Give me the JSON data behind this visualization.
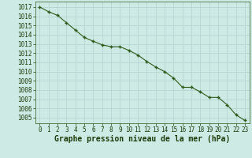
{
  "x": [
    0,
    1,
    2,
    3,
    4,
    5,
    6,
    7,
    8,
    9,
    10,
    11,
    12,
    13,
    14,
    15,
    16,
    17,
    18,
    19,
    20,
    21,
    22,
    23
  ],
  "y": [
    1017.0,
    1016.5,
    1016.1,
    1015.3,
    1014.5,
    1013.7,
    1013.3,
    1012.9,
    1012.7,
    1012.7,
    1012.3,
    1011.8,
    1011.1,
    1010.5,
    1010.0,
    1009.3,
    1008.3,
    1008.3,
    1007.8,
    1007.2,
    1007.2,
    1006.4,
    1005.3,
    1004.7
  ],
  "line_color": "#2d5a1b",
  "marker": "+",
  "bg_color": "#ceeae4",
  "grid_color": "#b0d4ce",
  "title": "Graphe pression niveau de la mer (hPa)",
  "ylabel_ticks": [
    1005,
    1006,
    1007,
    1008,
    1009,
    1010,
    1011,
    1012,
    1013,
    1014,
    1015,
    1016,
    1017
  ],
  "ylim": [
    1004.4,
    1017.6
  ],
  "xlim": [
    -0.5,
    23.5
  ],
  "xticks": [
    0,
    1,
    2,
    3,
    4,
    5,
    6,
    7,
    8,
    9,
    10,
    11,
    12,
    13,
    14,
    15,
    16,
    17,
    18,
    19,
    20,
    21,
    22,
    23
  ],
  "title_fontsize": 7,
  "tick_fontsize": 5.5,
  "title_color": "#1a3a0a",
  "tick_color": "#1a3a0a",
  "spine_color": "#2d5a1b"
}
